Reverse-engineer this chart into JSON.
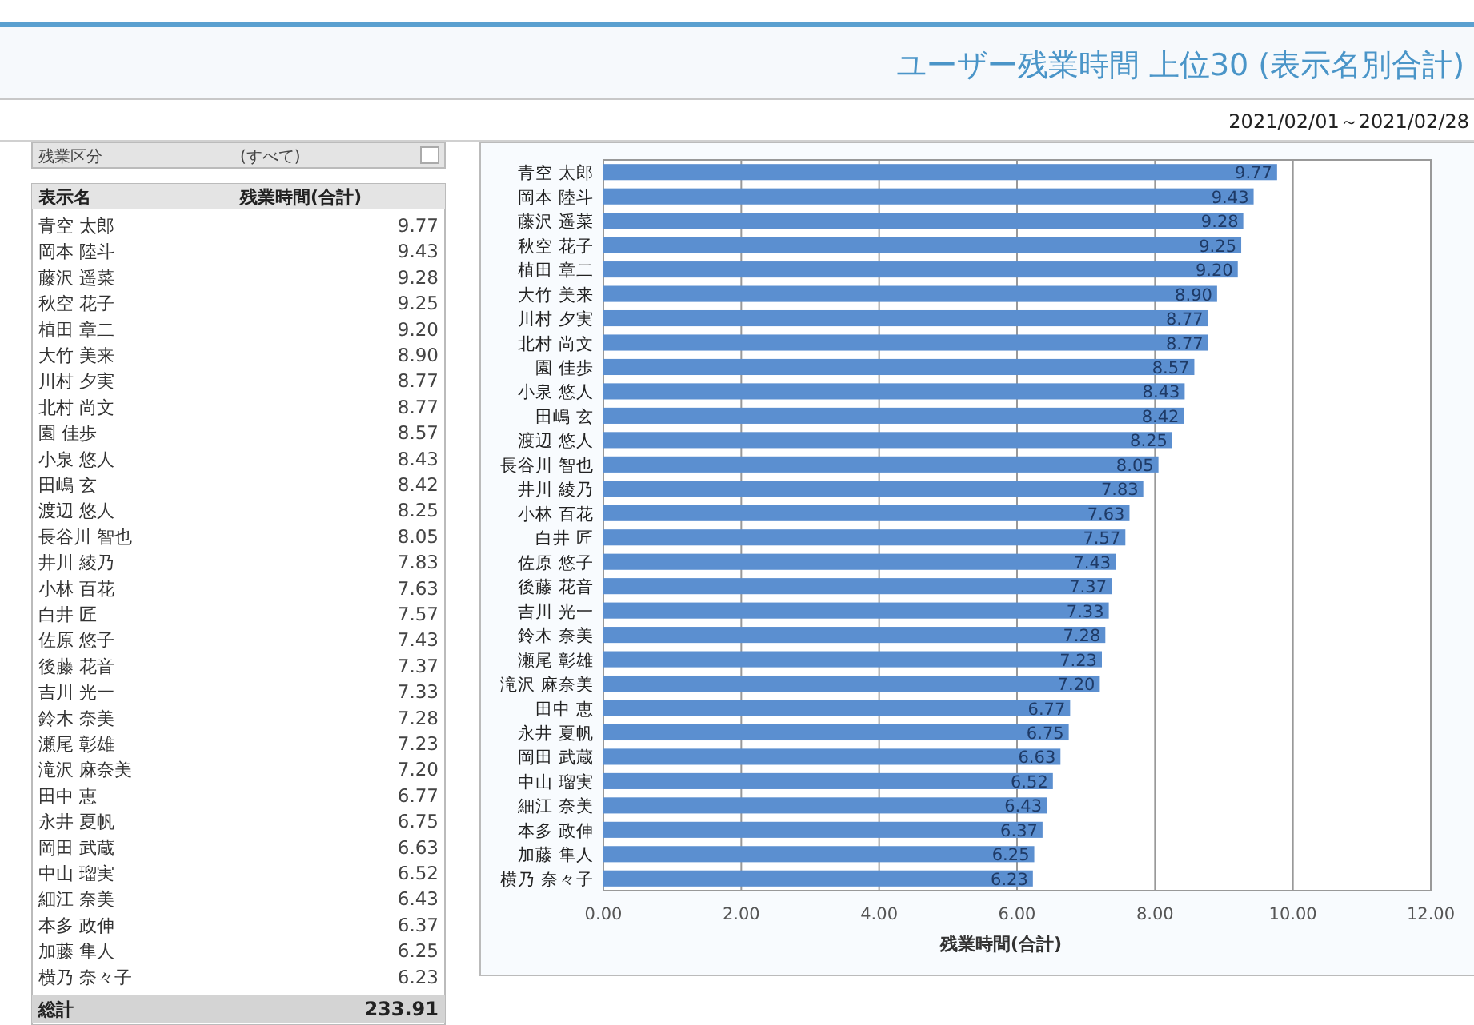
{
  "chart_data": {
    "type": "bar",
    "orientation": "horizontal",
    "title": "ユーザー残業時間 上位30 (表示名別合計)",
    "subtitle": "2021/02/01～2021/02/28",
    "xlabel": "残業時間(合計)",
    "categories": [
      "青空 太郎",
      "岡本 陸斗",
      "藤沢 遥菜",
      "秋空 花子",
      "植田 章二",
      "大竹 美来",
      "川村 夕実",
      "北村 尚文",
      "園 佳歩",
      "小泉 悠人",
      "田嶋 玄",
      "渡辺 悠人",
      "長谷川 智也",
      "井川 綾乃",
      "小林 百花",
      "白井 匠",
      "佐原 悠子",
      "後藤 花音",
      "吉川 光一",
      "鈴木 奈美",
      "瀬尾 彰雄",
      "滝沢 麻奈美",
      "田中 恵",
      "永井 夏帆",
      "岡田 武蔵",
      "中山 瑠実",
      "細江 奈美",
      "本多 政伸",
      "加藤 隼人",
      "横乃 奈々子"
    ],
    "values": [
      9.77,
      9.43,
      9.28,
      9.25,
      9.2,
      8.9,
      8.77,
      8.77,
      8.57,
      8.43,
      8.42,
      8.25,
      8.05,
      7.83,
      7.63,
      7.57,
      7.43,
      7.37,
      7.33,
      7.28,
      7.23,
      7.2,
      6.77,
      6.75,
      6.63,
      6.52,
      6.43,
      6.37,
      6.25,
      6.23
    ],
    "value_labels": [
      "9.77",
      "9.43",
      "9.28",
      "9.25",
      "9.20",
      "8.90",
      "8.77",
      "8.77",
      "8.57",
      "8.43",
      "8.42",
      "8.25",
      "8.05",
      "7.83",
      "7.63",
      "7.57",
      "7.43",
      "7.37",
      "7.33",
      "7.28",
      "7.23",
      "7.20",
      "6.77",
      "6.75",
      "6.63",
      "6.52",
      "6.43",
      "6.37",
      "6.25",
      "6.23"
    ],
    "color": "#5b8fd0",
    "xlim": [
      0,
      12
    ],
    "xticks": [
      {
        "value": 0,
        "label": "0.00"
      },
      {
        "value": 2,
        "label": "2.00"
      },
      {
        "value": 4,
        "label": "4.00"
      },
      {
        "value": 6,
        "label": "6.00"
      },
      {
        "value": 8,
        "label": "8.00"
      },
      {
        "value": 10,
        "label": "10.00"
      },
      {
        "value": 12,
        "label": "12.00"
      }
    ],
    "grid": "x",
    "annotations": [
      "残業区分",
      "(すべて)",
      "表示名",
      "残業時間(合計)",
      "総計",
      "233.91"
    ]
  }
}
